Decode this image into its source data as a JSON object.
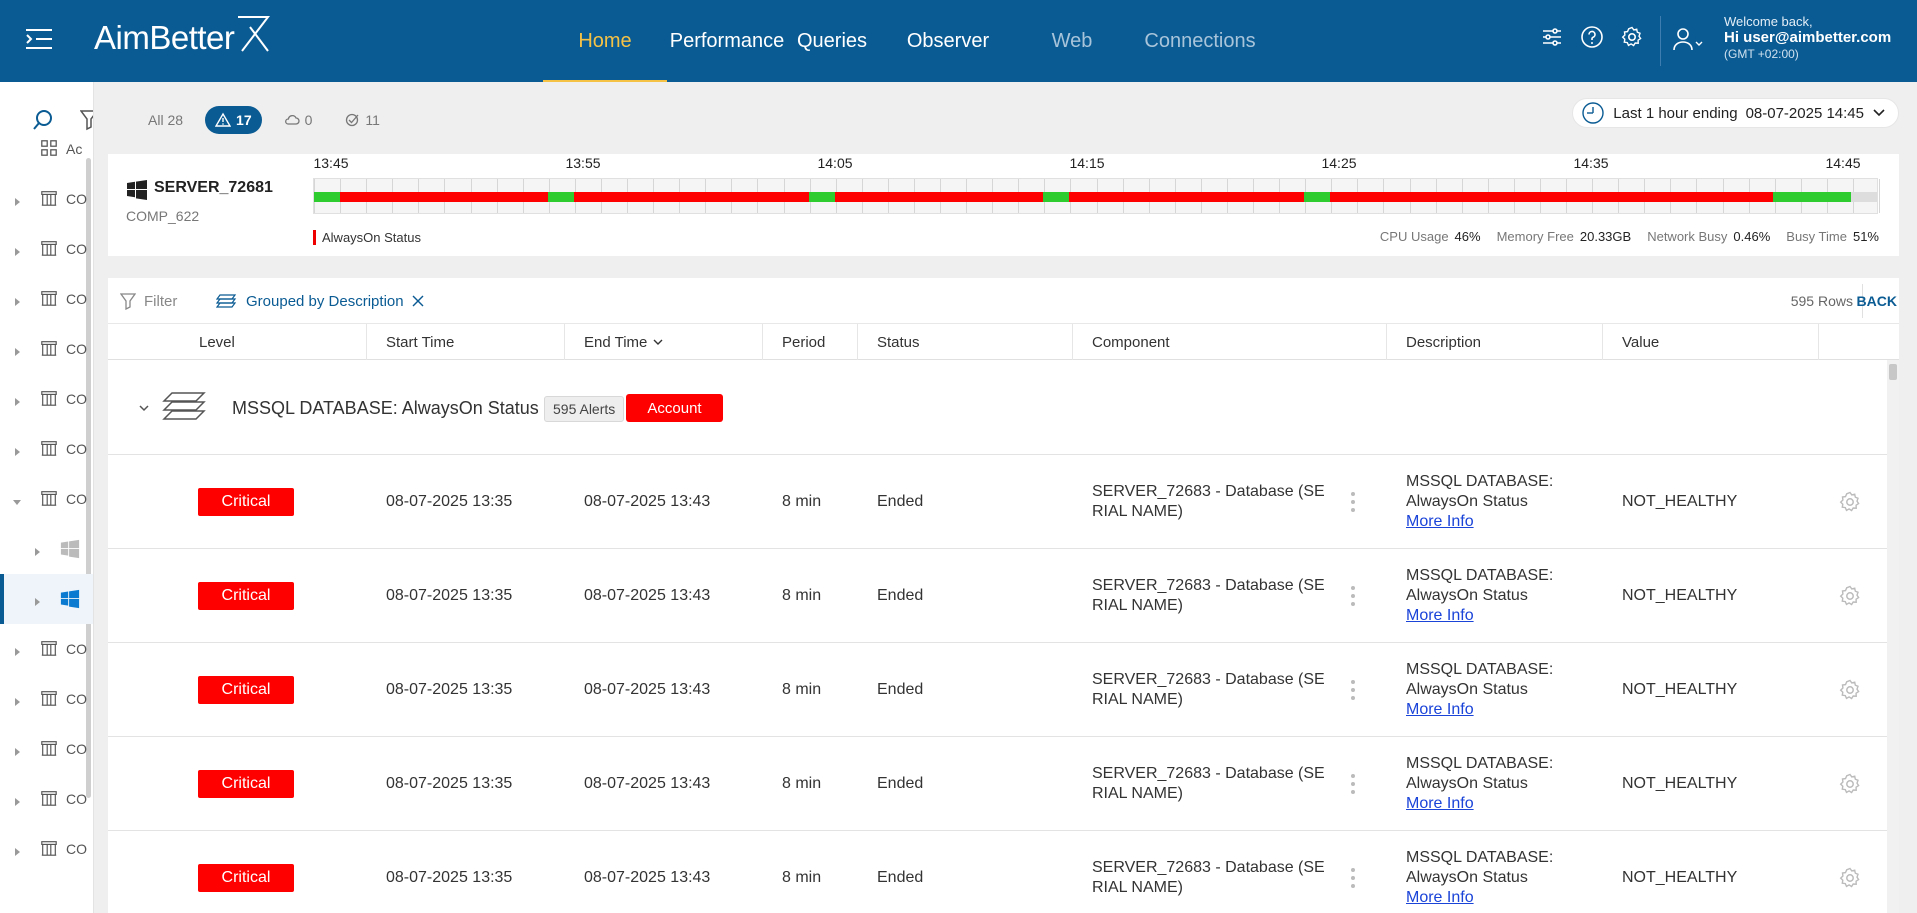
{
  "header": {
    "logo": "AimBetter",
    "nav": [
      {
        "label": "Home",
        "state": "active"
      },
      {
        "label": "Performance",
        "state": "normal"
      },
      {
        "label": "Queries",
        "state": "normal"
      },
      {
        "label": "Observer",
        "state": "normal"
      },
      {
        "label": "Web",
        "state": "dim"
      },
      {
        "label": "Connections",
        "state": "dim"
      }
    ],
    "icons": [
      "sliders-icon",
      "help-icon",
      "settings-icon"
    ],
    "welcome": "Welcome back,",
    "user": "Hi user@aimbetter.com",
    "timezone": "(GMT +02:00)"
  },
  "sidebar": {
    "items": [
      {
        "label": "Ac",
        "icon": "grid-icon",
        "caret": "none",
        "state": "normal"
      },
      {
        "label": "CO",
        "icon": "server-icon",
        "caret": "right",
        "state": "normal"
      },
      {
        "label": "CO",
        "icon": "server-icon",
        "caret": "right",
        "state": "normal"
      },
      {
        "label": "CO",
        "icon": "server-icon",
        "caret": "right",
        "state": "normal"
      },
      {
        "label": "CO",
        "icon": "server-icon",
        "caret": "right",
        "state": "normal"
      },
      {
        "label": "CO",
        "icon": "server-icon",
        "caret": "right",
        "state": "normal"
      },
      {
        "label": "CO",
        "icon": "server-icon",
        "caret": "right",
        "state": "normal"
      },
      {
        "label": "CO",
        "icon": "server-icon",
        "caret": "down",
        "state": "normal"
      },
      {
        "label": "",
        "icon": "windows-icon-gray",
        "caret": "right",
        "state": "nested"
      },
      {
        "label": "",
        "icon": "windows-icon-blue",
        "caret": "right",
        "state": "selected"
      },
      {
        "label": "CO",
        "icon": "server-icon",
        "caret": "right",
        "state": "normal"
      },
      {
        "label": "CO",
        "icon": "server-icon",
        "caret": "right",
        "state": "normal"
      },
      {
        "label": "CO",
        "icon": "server-icon",
        "caret": "right",
        "state": "normal"
      },
      {
        "label": "CO",
        "icon": "server-icon",
        "caret": "right",
        "state": "normal"
      },
      {
        "label": "CO",
        "icon": "server-icon",
        "caret": "right",
        "state": "normal"
      }
    ]
  },
  "filters": {
    "all": "All 28",
    "alerts": "17",
    "cloud": "0",
    "resolved": "11"
  },
  "timepicker": {
    "label": "Last 1 hour ending",
    "value": "08-07-2025 14:45"
  },
  "server": {
    "name": "SERVER_72681",
    "comp": "COMP_622",
    "ticks": [
      "13:45",
      "13:55",
      "14:05",
      "14:15",
      "14:25",
      "14:35",
      "14:45"
    ],
    "legend": "AlwaysOn Status",
    "status_colors": {
      "ok": "#2ecc2e",
      "critical": "#ff0000",
      "none": "#dddddd"
    },
    "timeline": [
      {
        "status": "ok",
        "span": 1
      },
      {
        "status": "critical",
        "span": 8
      },
      {
        "status": "ok",
        "span": 1
      },
      {
        "status": "critical",
        "span": 9
      },
      {
        "status": "ok",
        "span": 1
      },
      {
        "status": "critical",
        "span": 8
      },
      {
        "status": "ok",
        "span": 1
      },
      {
        "status": "critical",
        "span": 9
      },
      {
        "status": "ok",
        "span": 1
      },
      {
        "status": "critical",
        "span": 17
      },
      {
        "status": "ok",
        "span": 3
      },
      {
        "status": "none",
        "span": 1
      }
    ],
    "stats": [
      {
        "label": "CPU Usage",
        "value": "46%"
      },
      {
        "label": "Memory Free",
        "value": "20.33GB"
      },
      {
        "label": "Network Busy",
        "value": "0.46%"
      },
      {
        "label": "Busy Time",
        "value": "51%"
      }
    ]
  },
  "table": {
    "filter_label": "Filter",
    "group_label": "Grouped by Description",
    "rows_count": "595 Rows",
    "back_label": "BACK",
    "columns": [
      "Level",
      "Start Time",
      "End Time",
      "Period",
      "Status",
      "Component",
      "Description",
      "Value"
    ],
    "group": {
      "title": "MSSQL DATABASE: AlwaysOn Status",
      "alerts": "595 Alerts",
      "account": "Account"
    },
    "rows": [
      {
        "level": "Critical",
        "start": "08-07-2025 13:35",
        "end": "08-07-2025 13:43",
        "period": "8 min",
        "status": "Ended",
        "component": "SERVER_72683 - Database (SERIAL NAME)",
        "description": "MSSQL DATABASE: AlwaysOn Status",
        "more": "More Info",
        "value": "NOT_HEALTHY"
      },
      {
        "level": "Critical",
        "start": "08-07-2025 13:35",
        "end": "08-07-2025 13:43",
        "period": "8 min",
        "status": "Ended",
        "component": "SERVER_72683 - Database (SERIAL NAME)",
        "description": "MSSQL DATABASE: AlwaysOn Status",
        "more": "More Info",
        "value": "NOT_HEALTHY"
      },
      {
        "level": "Critical",
        "start": "08-07-2025 13:35",
        "end": "08-07-2025 13:43",
        "period": "8 min",
        "status": "Ended",
        "component": "SERVER_72683 - Database (SERIAL NAME)",
        "description": "MSSQL DATABASE: AlwaysOn Status",
        "more": "More Info",
        "value": "NOT_HEALTHY"
      },
      {
        "level": "Critical",
        "start": "08-07-2025 13:35",
        "end": "08-07-2025 13:43",
        "period": "8 min",
        "status": "Ended",
        "component": "SERVER_72683 - Database (SERIAL NAME)",
        "description": "MSSQL DATABASE: AlwaysOn Status",
        "more": "More Info",
        "value": "NOT_HEALTHY"
      },
      {
        "level": "Critical",
        "start": "08-07-2025 13:35",
        "end": "08-07-2025 13:43",
        "period": "8 min",
        "status": "Ended",
        "component": "SERVER_72683 - Database (SERIAL NAME)",
        "description": "MSSQL DATABASE: AlwaysOn Status",
        "more": "More Info",
        "value": "NOT_HEALTHY"
      }
    ]
  }
}
